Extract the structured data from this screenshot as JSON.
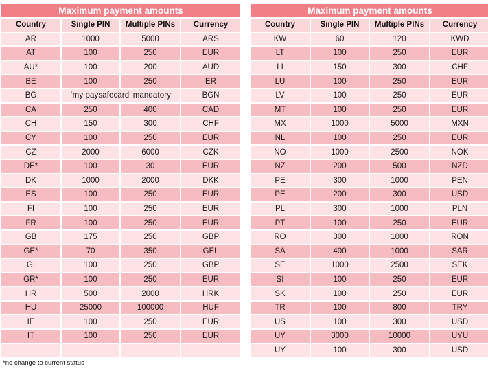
{
  "left": {
    "title": "Maximum payment amounts",
    "columns": [
      "Country",
      "Single PIN",
      "Multiple PINs",
      "Currency"
    ],
    "rows": [
      [
        "AR",
        "1000",
        "5000",
        "ARS"
      ],
      [
        "AT",
        "100",
        "250",
        "EUR"
      ],
      [
        "AU*",
        "100",
        "200",
        "AUD"
      ],
      [
        "BE",
        "100",
        "250",
        "ER"
      ],
      [
        "BG",
        "‘my paysafecard’ mandatory",
        "",
        "BGN"
      ],
      [
        "CA",
        "250",
        "400",
        "CAD"
      ],
      [
        "CH",
        "150",
        "300",
        "CHF"
      ],
      [
        "CY",
        "100",
        "250",
        "EUR"
      ],
      [
        "CZ",
        "2000",
        "6000",
        "CZK"
      ],
      [
        "DE*",
        "100",
        "30",
        "EUR"
      ],
      [
        "DK",
        "1000",
        "2000",
        "DKK"
      ],
      [
        "ES",
        "100",
        "250",
        "EUR"
      ],
      [
        "FI",
        "100",
        "250",
        "EUR"
      ],
      [
        "FR",
        "100",
        "250",
        "EUR"
      ],
      [
        "GB",
        "175",
        "250",
        "GBP"
      ],
      [
        "GE*",
        "70",
        "350",
        "GEL"
      ],
      [
        "GI",
        "100",
        "250",
        "GBP"
      ],
      [
        "GR*",
        "100",
        "250",
        "EUR"
      ],
      [
        "HR",
        "500",
        "2000",
        "HRK"
      ],
      [
        "HU",
        "25000",
        "100000",
        "HUF"
      ],
      [
        "IE",
        "100",
        "250",
        "EUR"
      ],
      [
        "IT",
        "100",
        "250",
        "EUR"
      ],
      [
        "",
        "",
        "",
        ""
      ]
    ]
  },
  "right": {
    "title": "Maximum payment amounts",
    "columns": [
      "Country",
      "Single PIN",
      "Multiple PINs",
      "Currency"
    ],
    "rows": [
      [
        "KW",
        "60",
        "120",
        "KWD"
      ],
      [
        "LT",
        "100",
        "250",
        "EUR"
      ],
      [
        "LI",
        "150",
        "300",
        "CHF"
      ],
      [
        "LU",
        "100",
        "250",
        "EUR"
      ],
      [
        "LV",
        "100",
        "250",
        "EUR"
      ],
      [
        "MT",
        "100",
        "250",
        "EUR"
      ],
      [
        "MX",
        "1000",
        "5000",
        "MXN"
      ],
      [
        "NL",
        "100",
        "250",
        "EUR"
      ],
      [
        "NO",
        "1000",
        "2500",
        "NOK"
      ],
      [
        "NZ",
        "200",
        "500",
        "NZD"
      ],
      [
        "PE",
        "300",
        "1000",
        "PEN"
      ],
      [
        "PE",
        "200",
        "300",
        "USD"
      ],
      [
        "PL",
        "300",
        "1000",
        "PLN"
      ],
      [
        "PT",
        "100",
        "250",
        "EUR"
      ],
      [
        "RO",
        "300",
        "1000",
        "RON"
      ],
      [
        "SA",
        "400",
        "1000",
        "SAR"
      ],
      [
        "SE",
        "1000",
        "2500",
        "SEK"
      ],
      [
        "SI",
        "100",
        "250",
        "EUR"
      ],
      [
        "SK",
        "100",
        "250",
        "EUR"
      ],
      [
        "TR",
        "100",
        "800",
        "TRY"
      ],
      [
        "US",
        "100",
        "300",
        "USD"
      ],
      [
        "UY",
        "3000",
        "10000",
        "UYU"
      ],
      [
        "UY",
        "100",
        "300",
        "USD"
      ]
    ]
  },
  "footnote": "*no change to current status",
  "colors": {
    "title_bg": "#f37f86",
    "header_bg": "#fcd7da",
    "row_dark": "#f7bcc1",
    "row_light": "#fde3e5"
  }
}
